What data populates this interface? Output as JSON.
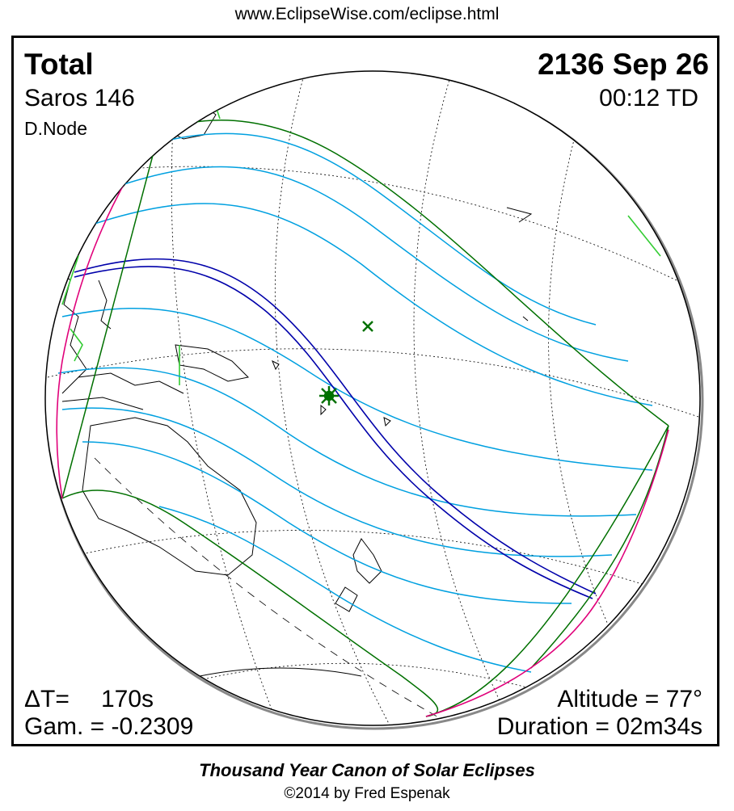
{
  "source_url": "www.EclipseWise.com/eclipse.html",
  "eclipse": {
    "type": "Total",
    "saros": "Saros 146",
    "node": "D.Node",
    "date": "2136 Sep 26",
    "time": "00:12 TD",
    "delta_t_label": "ΔT=",
    "delta_t_value": "170s",
    "gamma": "Gam. = -0.2309",
    "altitude": "Altitude = 77°",
    "duration": "Duration = 02m34s"
  },
  "map_markers": {
    "greatest_eclipse": "star",
    "subsolar_point": "x"
  },
  "colors": {
    "central_path": "#0000aa",
    "penumbral_lines": "#00a0e0",
    "penumbral_limits": "#007000",
    "rise_set_curves": "#e0007a",
    "coastline": "#000000",
    "graticule": "#000000",
    "greatest_marker": "#007000"
  },
  "footer": {
    "title": "Thousand Year Canon of Solar Eclipses",
    "copyright": "©2014 by Fred Espenak"
  }
}
